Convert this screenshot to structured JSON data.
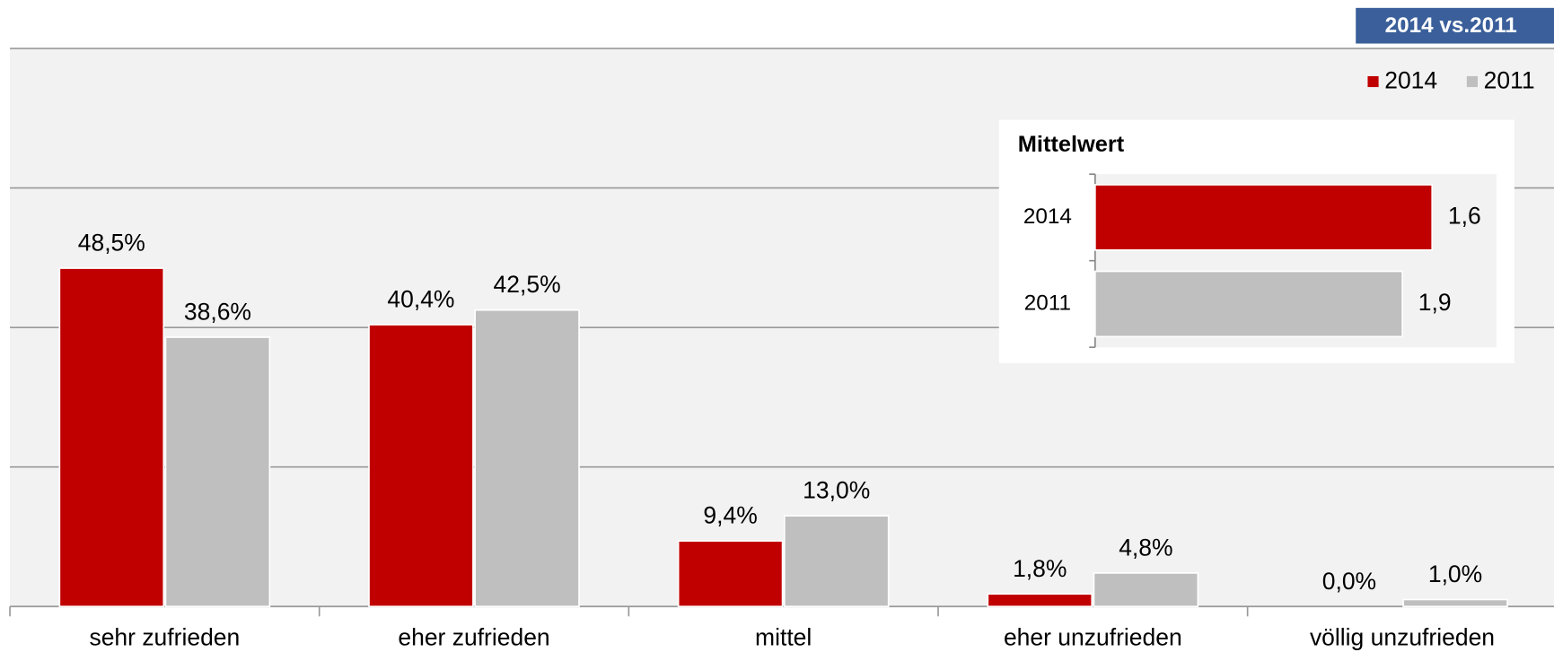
{
  "chart_data": [
    {
      "type": "bar",
      "categories": [
        "sehr zufrieden",
        "eher zufrieden",
        "mittel",
        "eher unzufrieden",
        "völlig unzufrieden"
      ],
      "series": [
        {
          "name": "2014",
          "color": "#c00000",
          "values": [
            48.5,
            40.4,
            9.4,
            1.8,
            0.0
          ],
          "value_labels": [
            "48,5%",
            "40,4%",
            "9,4%",
            "1,8%",
            "0,0%"
          ]
        },
        {
          "name": "2011",
          "color": "#bfbfbf",
          "values": [
            38.6,
            42.5,
            13.0,
            4.8,
            1.0
          ],
          "value_labels": [
            "38,6%",
            "42,5%",
            "13,0%",
            "4,8%",
            "1,0%"
          ]
        }
      ],
      "ylim": [
        0,
        80
      ],
      "yticks": [
        0,
        20,
        40,
        60,
        80
      ],
      "grid": true,
      "legend": "top-right",
      "badge": "2014 vs.2011"
    },
    {
      "type": "hbar",
      "title": "Mittelwert",
      "categories": [
        "2014",
        "2011"
      ],
      "values": [
        1.6,
        1.9
      ],
      "value_labels": [
        "1,6",
        "1,9"
      ],
      "colors": [
        "#c00000",
        "#bfbfbf"
      ],
      "xlim": [
        5,
        1
      ]
    }
  ]
}
